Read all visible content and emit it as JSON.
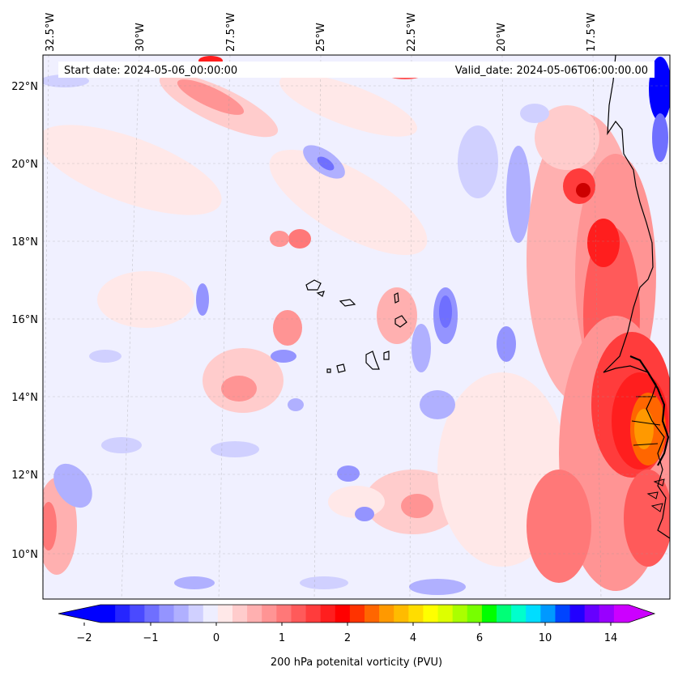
{
  "map": {
    "start_label": "Start date: 2024-05-06_00:00:00",
    "valid_label": "Valid_date: 2024-05-06T06:00:00.00",
    "lon_labels": [
      "32.5°W",
      "30°W",
      "27.5°W",
      "25°W",
      "22.5°W",
      "20°W",
      "17.5°W"
    ],
    "lat_labels": [
      "22°N",
      "20°N",
      "18°N",
      "16°N",
      "14°N",
      "12°N",
      "10°N"
    ],
    "colorbar_ticks": [
      "−2",
      "−1",
      "0",
      "1",
      "2",
      "4",
      "6",
      "10",
      "14"
    ],
    "colorbar_label": "200 hPa potenital vorticity (PVU)",
    "colorbar_colors": [
      "#0000ff",
      "#2525ff",
      "#4a4aff",
      "#6f6fff",
      "#9494ff",
      "#b0b0ff",
      "#d0d0ff",
      "#eeeeff",
      "#ffe8e8",
      "#ffcccc",
      "#ffb0b0",
      "#ff9494",
      "#ff7878",
      "#ff5a5a",
      "#ff3c3c",
      "#ff1e1e",
      "#ff0000",
      "#ff3300",
      "#ff6600",
      "#ff9900",
      "#ffbb00",
      "#ffdd00",
      "#ffff00",
      "#ddff00",
      "#aaff00",
      "#77ff00",
      "#00ff00",
      "#00ff77",
      "#00ffcc",
      "#00ddff",
      "#0099ff",
      "#0044ff",
      "#2200ff",
      "#6600ff",
      "#9900ff",
      "#cc00ff"
    ]
  }
}
